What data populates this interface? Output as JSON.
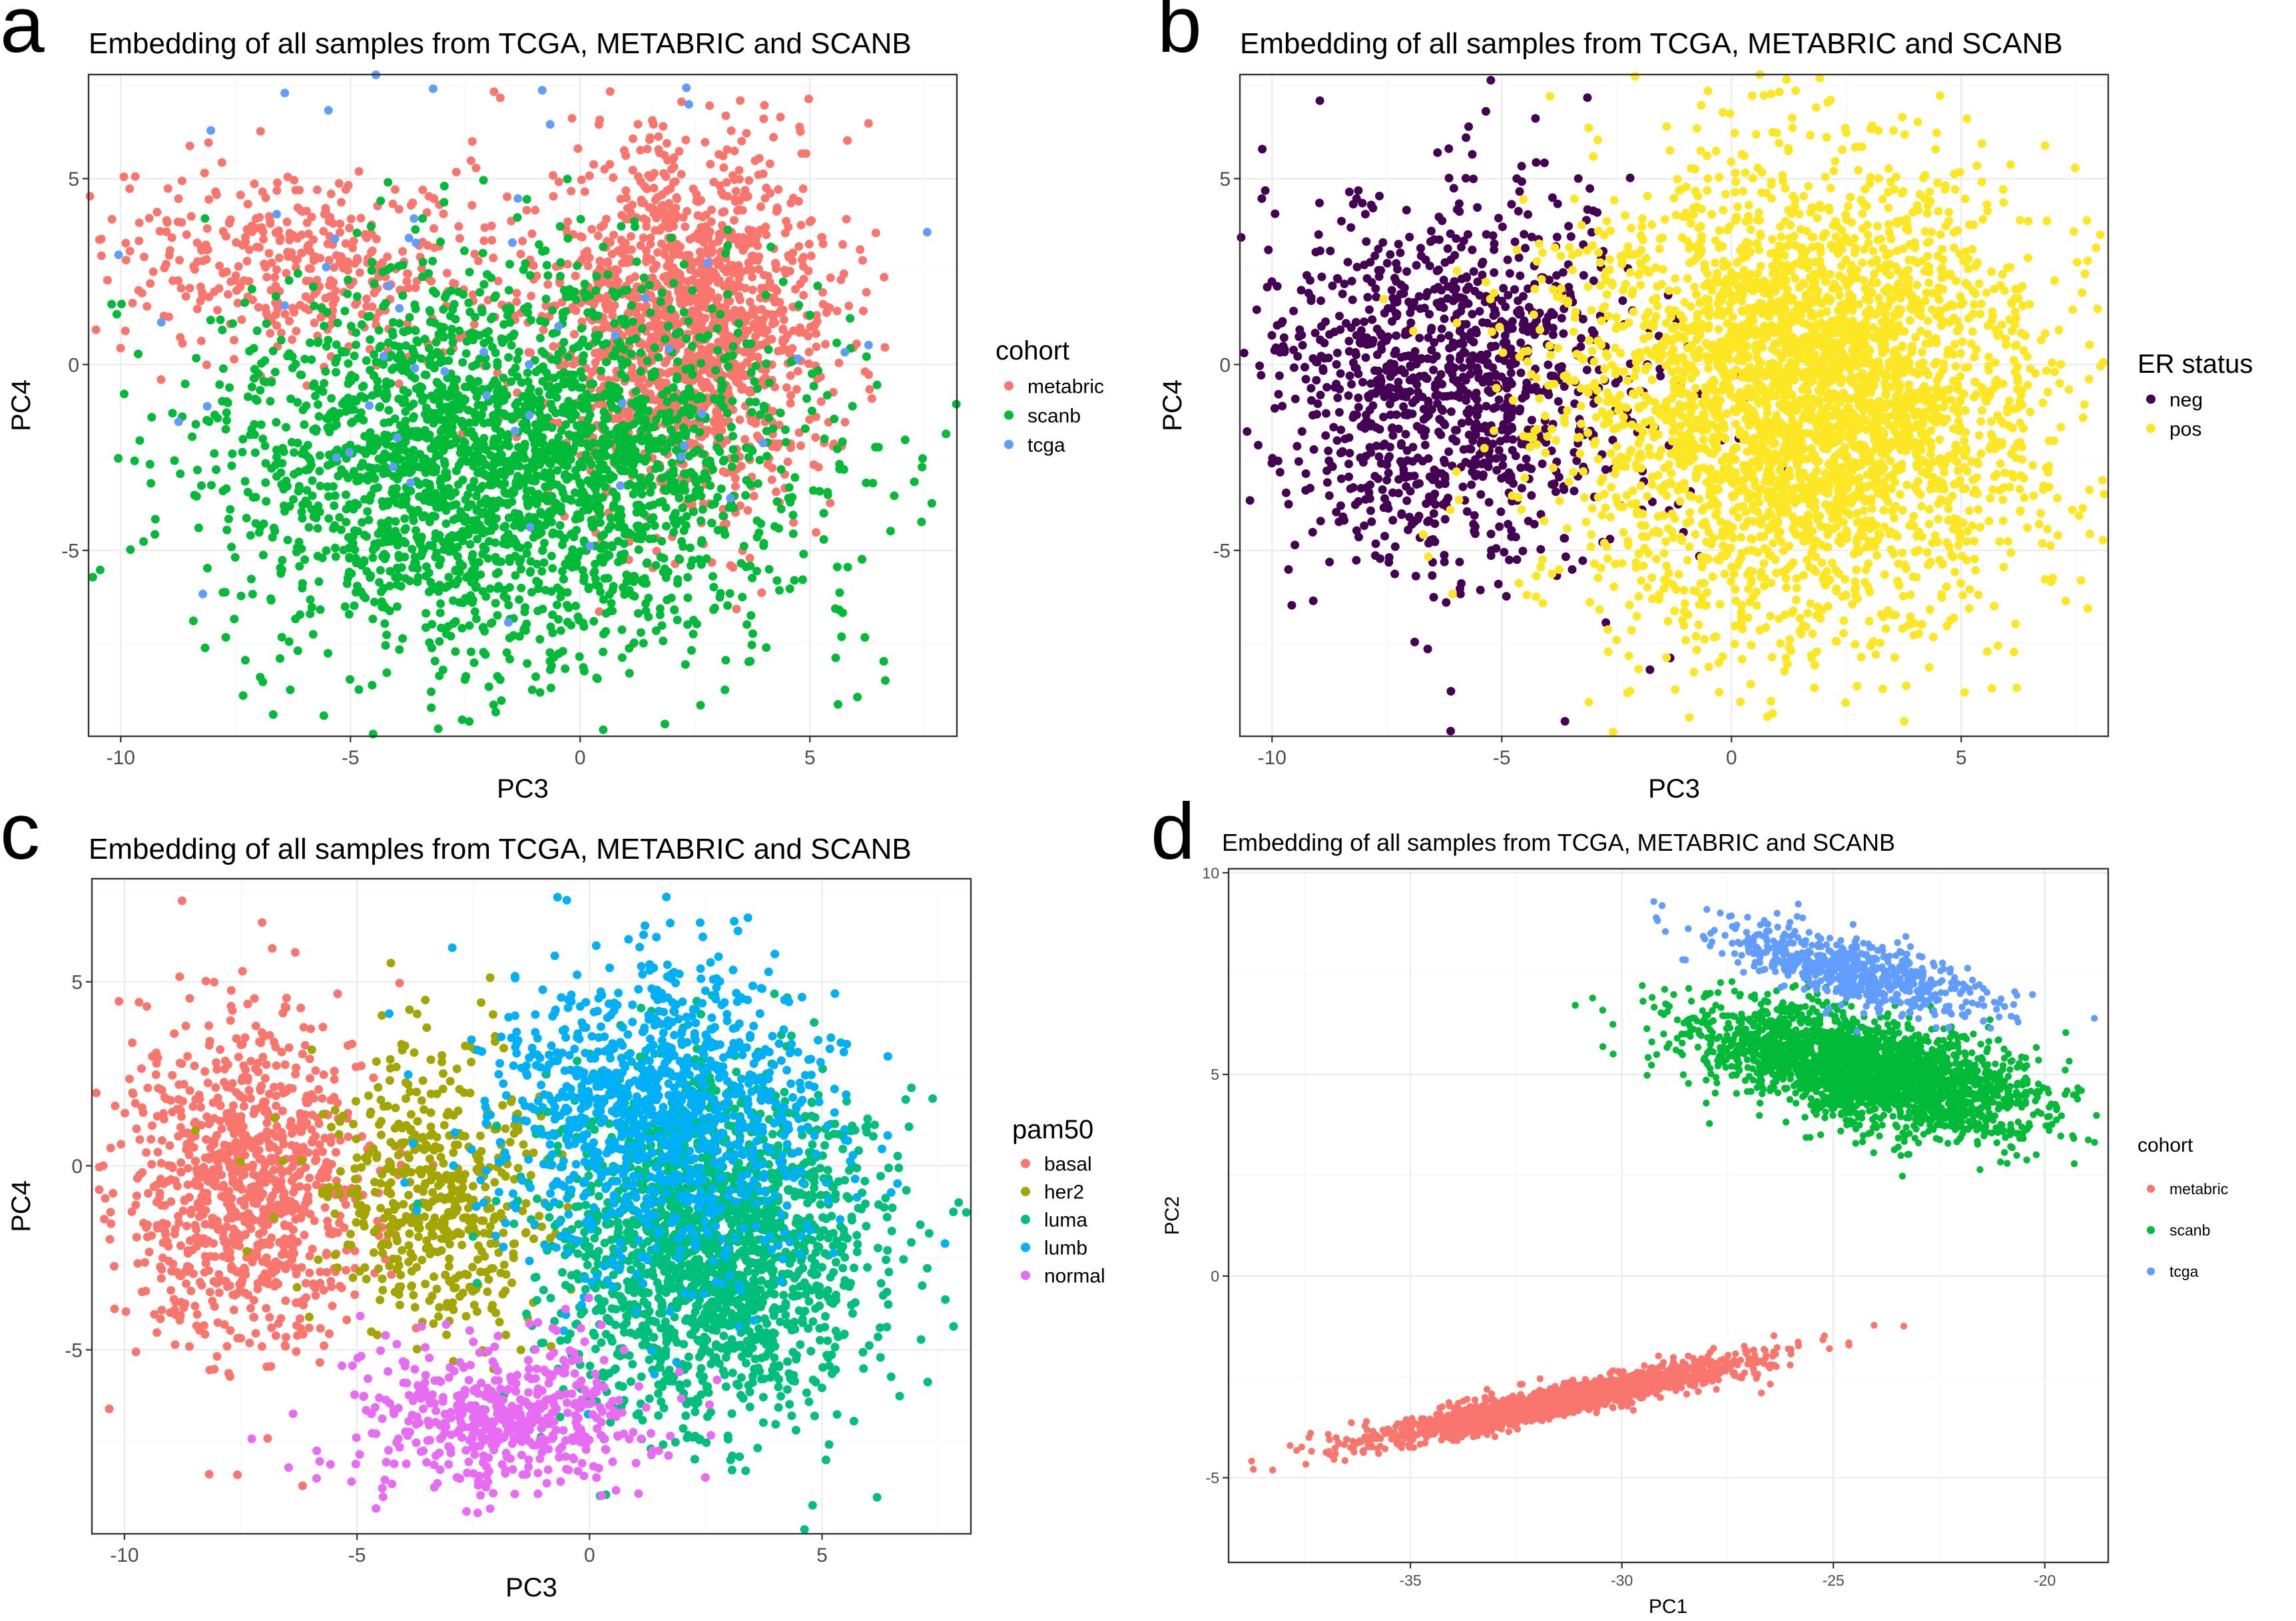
{
  "chart_data": [
    {
      "panel": "a",
      "type": "scatter",
      "title": "Embedding of all samples from TCGA, METABRIC and SCANB",
      "xlabel": "PC3",
      "ylabel": "PC4",
      "xlim": [
        -10.7,
        8.2
      ],
      "ylim": [
        -10.0,
        7.8
      ],
      "xticks": [
        -10,
        -5,
        0,
        5
      ],
      "yticks": [
        -5,
        0,
        5
      ],
      "grid": true,
      "legend": {
        "title": "cohort",
        "placement": "right"
      },
      "series": [
        {
          "name": "metabric",
          "color": "#F8766D",
          "point_count": 1980,
          "clusters": [
            {
              "center": [
                2.3,
                1.0
              ],
              "spread": [
                1.5,
                2.4
              ],
              "share": 0.78
            },
            {
              "center": [
                -6.0,
                2.6
              ],
              "spread": [
                2.3,
                1.3
              ],
              "share": 0.22
            }
          ]
        },
        {
          "name": "scanb",
          "color": "#00BA38",
          "point_count": 2600,
          "clusters": [
            {
              "center": [
                -1.5,
                -2.8
              ],
              "spread": [
                3.2,
                2.6
              ],
              "share": 1.0
            }
          ]
        },
        {
          "name": "tcga",
          "color": "#619CFF",
          "point_count": 60,
          "clusters": [
            {
              "center": [
                -2.0,
                0.5
              ],
              "spread": [
                4.5,
                3.5
              ],
              "share": 1.0
            }
          ]
        }
      ]
    },
    {
      "panel": "b",
      "type": "scatter",
      "title": "Embedding of all samples from TCGA, METABRIC and SCANB",
      "xlabel": "PC3",
      "ylabel": "PC4",
      "xlim": [
        -10.7,
        8.2
      ],
      "ylim": [
        -10.0,
        7.8
      ],
      "xticks": [
        -10,
        -5,
        0,
        5
      ],
      "yticks": [
        -5,
        0,
        5
      ],
      "grid": true,
      "legend": {
        "title": "ER status",
        "placement": "right"
      },
      "series": [
        {
          "name": "neg",
          "color": "#440154",
          "point_count": 1150,
          "clusters": [
            {
              "center": [
                -6.0,
                -0.5
              ],
              "spread": [
                2.0,
                2.6
              ],
              "share": 1.0
            }
          ]
        },
        {
          "name": "pos",
          "color": "#FDE725",
          "point_count": 3400,
          "clusters": [
            {
              "center": [
                1.6,
                -1.0
              ],
              "spread": [
                2.6,
                3.1
              ],
              "share": 1.0
            }
          ]
        }
      ]
    },
    {
      "panel": "c",
      "type": "scatter",
      "title": "Embedding of all samples from TCGA, METABRIC and SCANB",
      "xlabel": "PC3",
      "ylabel": "PC4",
      "xlim": [
        -10.7,
        8.2
      ],
      "ylim": [
        -10.0,
        7.8
      ],
      "xticks": [
        -10,
        -5,
        0,
        5
      ],
      "yticks": [
        -5,
        0,
        5
      ],
      "grid": true,
      "legend": {
        "title": "pam50",
        "placement": "right"
      },
      "series": [
        {
          "name": "basal",
          "color": "#F8766D",
          "point_count": 950,
          "clusters": [
            {
              "center": [
                -7.5,
                -0.5
              ],
              "spread": [
                1.3,
                2.2
              ],
              "share": 1.0
            }
          ]
        },
        {
          "name": "her2",
          "color": "#A3A500",
          "point_count": 520,
          "clusters": [
            {
              "center": [
                -3.3,
                -0.8
              ],
              "spread": [
                1.2,
                2.0
              ],
              "share": 1.0
            }
          ]
        },
        {
          "name": "luma",
          "color": "#00BF7D",
          "point_count": 1900,
          "clusters": [
            {
              "center": [
                2.6,
                -2.2
              ],
              "spread": [
                1.7,
                2.4
              ],
              "share": 1.0
            }
          ]
        },
        {
          "name": "lumb",
          "color": "#00B0F6",
          "point_count": 1100,
          "clusters": [
            {
              "center": [
                1.5,
                1.4
              ],
              "spread": [
                1.8,
                2.2
              ],
              "share": 1.0
            }
          ]
        },
        {
          "name": "normal",
          "color": "#E76BF3",
          "point_count": 520,
          "clusters": [
            {
              "center": [
                -1.8,
                -6.8
              ],
              "spread": [
                1.6,
                1.0
              ],
              "share": 1.0
            }
          ]
        }
      ]
    },
    {
      "panel": "d",
      "type": "scatter",
      "title": "Embedding of all samples from TCGA, METABRIC and SCANB",
      "xlabel": "PC1",
      "ylabel": "PC2",
      "xlim": [
        -39.3,
        -18.5
      ],
      "ylim": [
        -7.1,
        10.1
      ],
      "xticks": [
        -35,
        -30,
        -25,
        -20
      ],
      "yticks": [
        -5,
        0,
        5,
        10
      ],
      "grid": true,
      "legend": {
        "title": "cohort",
        "placement": "right"
      },
      "series": [
        {
          "name": "metabric",
          "color": "#F8766D",
          "point_count": 1900,
          "clusters": [
            {
              "center": [
                -31.5,
                -3.1
              ],
              "spread": [
                2.2,
                0.5
              ],
              "correlation": 0.93,
              "share": 1.0
            }
          ]
        },
        {
          "name": "scanb",
          "color": "#00BA38",
          "point_count": 2600,
          "clusters": [
            {
              "center": [
                -24.2,
                5.1
              ],
              "spread": [
                1.9,
                0.75
              ],
              "correlation": -0.55,
              "share": 1.0
            }
          ]
        },
        {
          "name": "tcga",
          "color": "#619CFF",
          "point_count": 650,
          "clusters": [
            {
              "center": [
                -24.6,
                7.6
              ],
              "spread": [
                1.6,
                0.55
              ],
              "correlation": -0.7,
              "share": 1.0
            }
          ]
        }
      ]
    }
  ]
}
